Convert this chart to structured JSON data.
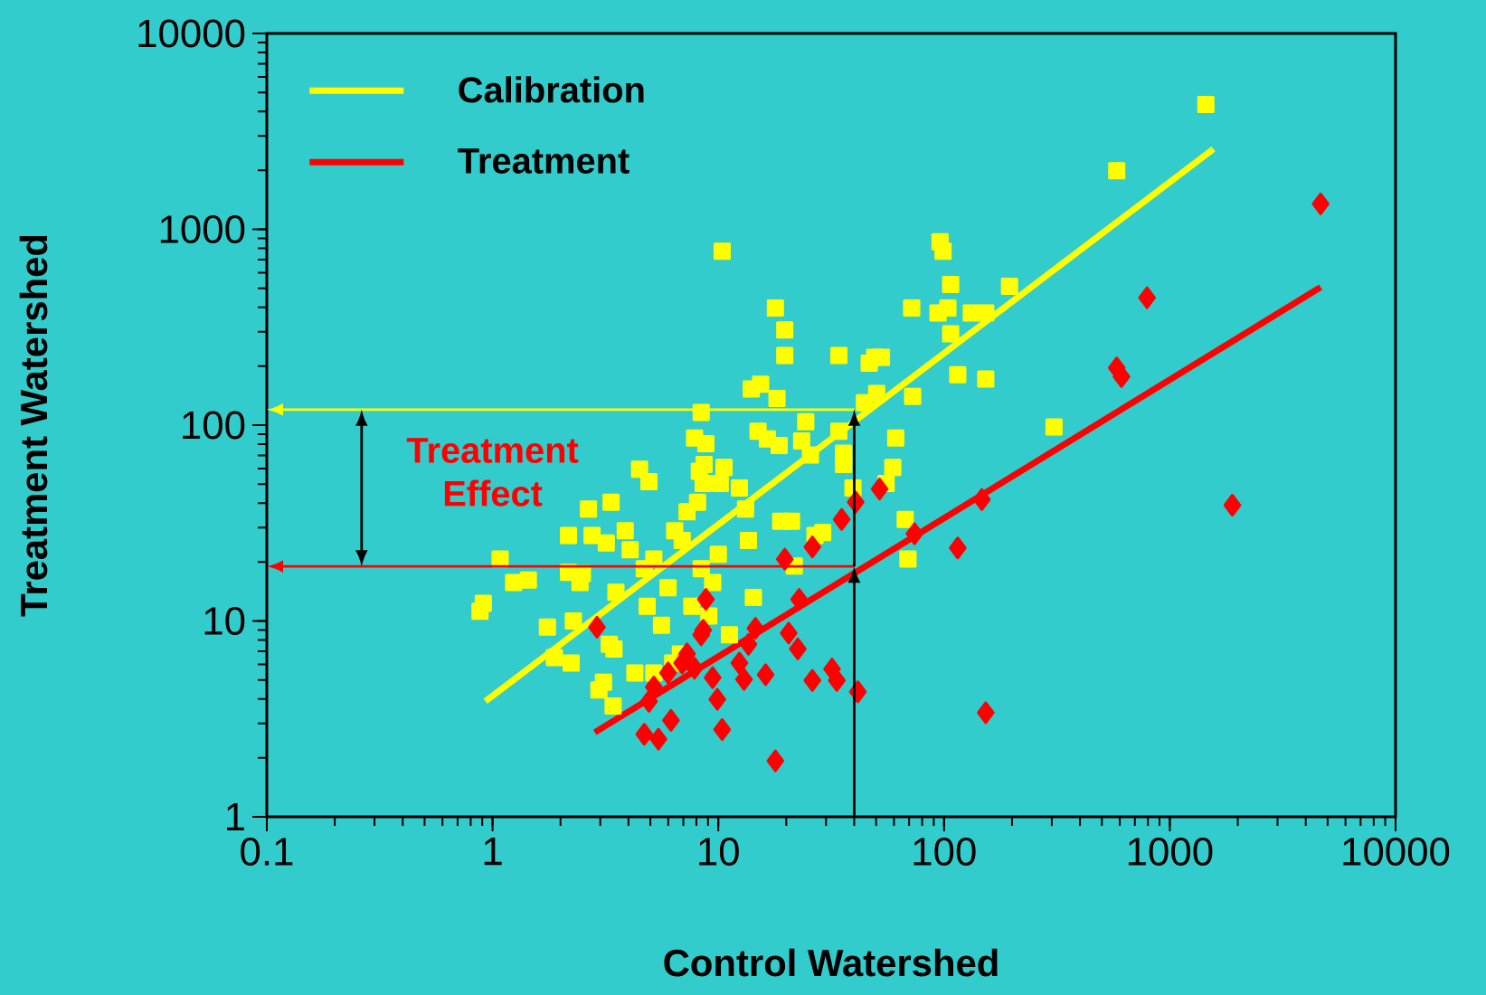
{
  "chart_data": {
    "type": "scatter",
    "xlabel": "Control Watershed",
    "ylabel": "Treatment Watershed",
    "log": "xy",
    "xlim": [
      0.1,
      10000
    ],
    "ylim": [
      1,
      10000
    ],
    "xticks": [
      0.1,
      1,
      10,
      100,
      1000,
      10000
    ],
    "yticks": [
      1,
      10,
      100,
      1000,
      10000
    ],
    "legend": "top left",
    "grid": false,
    "annotations": [
      "Treatment Effect"
    ],
    "ref_lines": [
      {
        "axis": "y",
        "value": 120,
        "color": "#ffff00"
      },
      {
        "axis": "y",
        "value": 19,
        "color": "#ff0000"
      },
      {
        "axis": "x",
        "value": 40,
        "color": "#000000"
      }
    ],
    "series": [
      {
        "color": "#ffff00",
        "marker": "square",
        "x": [
          0.88,
          0.91,
          1.08,
          1.24,
          1.44,
          1.75,
          1.88,
          2.17,
          2.23,
          2.17,
          2.28,
          2.44,
          2.5,
          2.66,
          2.76,
          2.96,
          3.1,
          3.35,
          3.19,
          3.29,
          3.42,
          3.52,
          3.45,
          3.87,
          4.07,
          4.27,
          4.48,
          4.93,
          4.7,
          4.84,
          5.18,
          5.18,
          5.6,
          5.99,
          6.28,
          6.79,
          6.41,
          6.92,
          7.27,
          7.85,
          8.4,
          8.65,
          8.81,
          8.09,
          8.24,
          8.57,
          7.63,
          8.4,
          9.08,
          9.44,
          10,
          10.2,
          10.6,
          10.4,
          11.2,
          12.4,
          13.2,
          13.6,
          14.3,
          14,
          15.4,
          15,
          16.5,
          17.9,
          18.2,
          19.7,
          19.7,
          18.6,
          18.9,
          21.1,
          21.7,
          24.4,
          23.4,
          25.6,
          26.8,
          29,
          34.2,
          34.2,
          35.9,
          35.9,
          39.5,
          44.4,
          46.6,
          49.3,
          52.8,
          50.3,
          55.4,
          59.3,
          61.1,
          67.3,
          69.2,
          72.6,
          71.9,
          96,
          99,
          94,
          104,
          107,
          107,
          115,
          132,
          153,
          153,
          195,
          307,
          582,
          1445
        ],
        "values": [
          11.2,
          12.3,
          20.7,
          15.7,
          16.2,
          9.3,
          6.5,
          17.7,
          6.1,
          27.3,
          10,
          15.7,
          17.5,
          37.3,
          27.3,
          4.45,
          4.86,
          40.4,
          25,
          7.6,
          3.68,
          14,
          7.2,
          28.9,
          23.1,
          5.43,
          59.6,
          51.5,
          18.5,
          11.9,
          5.43,
          20.7,
          9.5,
          14.8,
          6.1,
          6.79,
          28.9,
          25.8,
          36.1,
          86,
          116,
          63,
          80.5,
          40.4,
          58.2,
          50.4,
          11.9,
          18.5,
          10.6,
          15.7,
          21.9,
          50.4,
          60.9,
          772,
          8.5,
          47.7,
          37.3,
          25.8,
          13.2,
          153,
          162,
          93,
          85,
          396,
          137,
          306,
          227,
          78.7,
          32.3,
          32.3,
          19.1,
          104,
          83,
          70.4,
          27.3,
          28.3,
          227,
          93,
          72,
          63,
          47.7,
          130,
          207,
          222,
          222,
          145,
          50.4,
          60.9,
          86,
          33,
          20.7,
          140,
          396,
          863,
          772,
          374,
          396,
          523,
          293,
          181,
          374,
          374,
          172,
          511,
          98,
          1990,
          4340
        ]
      },
      {
        "color": "#ff0000",
        "marker": "diamond",
        "x": [
          2.9,
          4.7,
          4.93,
          5.43,
          5.18,
          5.99,
          6.17,
          6.92,
          7.27,
          7.85,
          8.4,
          8.81,
          8.57,
          9.44,
          9.9,
          10.4,
          12.4,
          13,
          13.6,
          14.6,
          16.2,
          17.9,
          19.7,
          20.5,
          22.5,
          22.8,
          26.1,
          26.1,
          31.9,
          33.5,
          35.2,
          40.6,
          41.5,
          51.8,
          74,
          115,
          147,
          153,
          582,
          611,
          793,
          1893,
          4656
        ],
        "values": [
          9.3,
          2.64,
          3.89,
          2.49,
          4.6,
          5.43,
          3.11,
          6.1,
          6.79,
          5.74,
          8.5,
          12.9,
          8.97,
          5.14,
          3.98,
          2.79,
          6.1,
          5.03,
          7.6,
          9.18,
          5.32,
          1.93,
          20.7,
          8.67,
          7.2,
          12.9,
          4.97,
          23.9,
          5.68,
          4.97,
          33,
          40.4,
          4.35,
          47.2,
          27.9,
          23.6,
          41.7,
          3.4,
          196,
          177,
          447,
          39,
          1347
        ]
      },
      {
        "type": "line",
        "name": "Calibration",
        "color": "#ffff00",
        "x": [
          0.93,
          1560
        ],
        "values": [
          3.89,
          2570
        ]
      },
      {
        "type": "line",
        "name": "Treatment",
        "color": "#ff0000",
        "x": [
          2.84,
          4656
        ],
        "values": [
          2.7,
          506
        ]
      }
    ]
  }
}
